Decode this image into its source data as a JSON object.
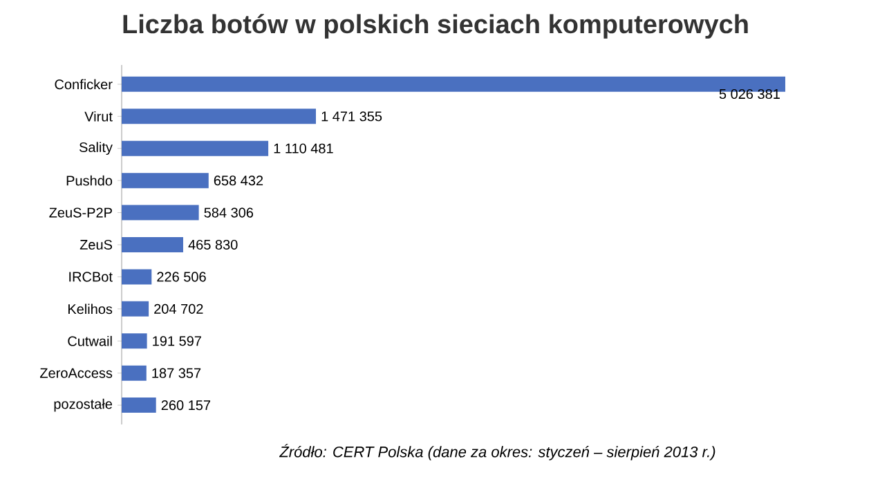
{
  "chart_data": {
    "type": "bar",
    "orientation": "horizontal",
    "title": "Liczba botów w polskich sieciach komputerowych",
    "categories": [
      "Conficker",
      "Virut",
      "Sality",
      "Pushdo",
      "ZeuS-P2P",
      "ZeuS",
      "IRCBot",
      "Kelihos",
      "Cutwail",
      "ZeroAccess",
      "pozostałe"
    ],
    "values": [
      5026381,
      1471355,
      1110481,
      658432,
      584306,
      465830,
      226506,
      204702,
      191597,
      187357,
      260157
    ],
    "value_labels": [
      "5 026 381",
      "1 471 355",
      "1 110 481",
      "658 432",
      "584 306",
      "465 830",
      "226 506",
      "204 702",
      "191 597",
      "187 357",
      "260 157"
    ],
    "color": "#4a70c0",
    "annotations": [
      "Źródło: CERT Polska (dane za okres: styczeń – sierpień 2013 r.)"
    ]
  }
}
